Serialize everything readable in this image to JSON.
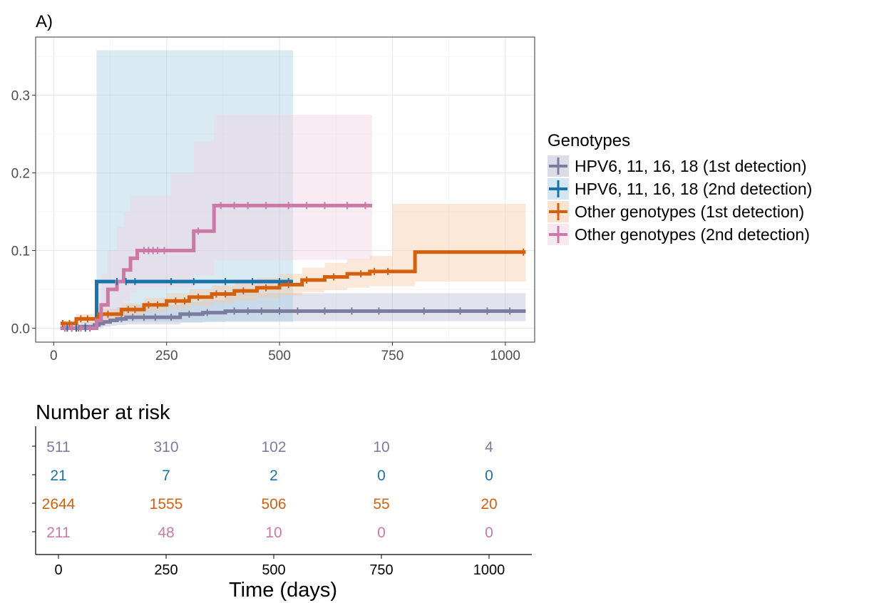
{
  "panel_label": "A)",
  "legend": {
    "title": "Genotypes"
  },
  "risk_table": {
    "title": "Number at risk",
    "xlabel": "Time (days)",
    "x_ticks": [
      0,
      250,
      500,
      750,
      1000
    ],
    "rows": [
      {
        "series": "HPV6, 11, 16, 18 (1st detection)",
        "values": [
          511,
          310,
          102,
          10,
          4
        ]
      },
      {
        "series": "HPV6, 11, 16, 18 (2nd detection)",
        "values": [
          21,
          7,
          2,
          0,
          0
        ]
      },
      {
        "series": "Other genotypes (1st detection)",
        "values": [
          2644,
          1555,
          506,
          55,
          20
        ]
      },
      {
        "series": "Other genotypes (2nd detection)",
        "values": [
          211,
          48,
          10,
          0,
          0
        ]
      }
    ]
  },
  "chart_data": {
    "type": "line",
    "title": "",
    "xlabel": "",
    "ylabel": "",
    "xlim": [
      -40,
      1065
    ],
    "ylim": [
      -0.018,
      0.375
    ],
    "x_ticks": [
      0,
      250,
      500,
      750,
      1000
    ],
    "y_ticks": [
      0.0,
      0.1,
      0.2,
      0.3
    ],
    "y_tick_labels": [
      "0.0",
      "0.1",
      "0.2",
      "0.3"
    ],
    "grid": true,
    "legend_position": "right",
    "series": [
      {
        "name": "HPV6, 11, 16, 18 (1st detection)",
        "color": "#7b7d9e",
        "band_color": "#b8b9d0",
        "x": [
          15,
          60,
          90,
          100,
          110,
          125,
          140,
          160,
          280,
          330,
          380,
          1045
        ],
        "y": [
          0.0,
          0.002,
          0.004,
          0.006,
          0.008,
          0.01,
          0.012,
          0.014,
          0.018,
          0.02,
          0.022,
          0.022
        ],
        "lower": [
          0.0,
          0.0,
          0.0,
          0.0,
          0.002,
          0.003,
          0.004,
          0.005,
          0.007,
          0.008,
          0.009,
          0.009
        ],
        "upper": [
          0.001,
          0.008,
          0.012,
          0.018,
          0.021,
          0.024,
          0.027,
          0.03,
          0.034,
          0.036,
          0.045,
          0.045
        ],
        "censor_x": [
          25,
          40,
          55,
          70,
          150,
          175,
          200,
          225,
          260,
          300,
          340,
          400,
          430,
          460,
          500,
          540,
          600,
          660,
          720,
          820,
          900,
          960,
          1010
        ]
      },
      {
        "name": "HPV6, 11, 16, 18 (2nd detection)",
        "color": "#1a72a8",
        "band_color": "#a8cee3",
        "x": [
          15,
          95,
          140,
          530
        ],
        "y": [
          0.0,
          0.06,
          0.06,
          0.06
        ],
        "lower": [
          0.0,
          0.008,
          0.008,
          0.008
        ],
        "upper": [
          0.001,
          0.358,
          0.358,
          0.358
        ],
        "censor_x": [
          30,
          50,
          70,
          140,
          160,
          180,
          260,
          310,
          380,
          440,
          500,
          520
        ]
      },
      {
        "name": "Other genotypes (1st detection)",
        "color": "#d4600f",
        "band_color": "#f5c7a3",
        "x": [
          15,
          50,
          100,
          150,
          200,
          250,
          300,
          350,
          400,
          450,
          500,
          550,
          600,
          650,
          700,
          750,
          800,
          1045
        ],
        "y": [
          0.006,
          0.012,
          0.018,
          0.024,
          0.03,
          0.035,
          0.04,
          0.044,
          0.048,
          0.052,
          0.056,
          0.062,
          0.066,
          0.07,
          0.073,
          0.073,
          0.098,
          0.098
        ],
        "lower": [
          0.002,
          0.006,
          0.011,
          0.016,
          0.021,
          0.025,
          0.029,
          0.033,
          0.036,
          0.039,
          0.042,
          0.046,
          0.049,
          0.052,
          0.054,
          0.054,
          0.06,
          0.06
        ],
        "upper": [
          0.01,
          0.018,
          0.025,
          0.032,
          0.039,
          0.045,
          0.05,
          0.055,
          0.06,
          0.065,
          0.07,
          0.078,
          0.084,
          0.089,
          0.093,
          0.16,
          0.16,
          0.16
        ],
        "censor_x": [
          20,
          35,
          60,
          75,
          120,
          165,
          180,
          210,
          230,
          270,
          290,
          320,
          360,
          380,
          420,
          470,
          520,
          560,
          620,
          680,
          710,
          740,
          1040
        ]
      },
      {
        "name": "Other genotypes (2nd detection)",
        "color": "#cc79a7",
        "band_color": "#f0cfe0",
        "x": [
          15,
          95,
          105,
          120,
          140,
          155,
          170,
          185,
          260,
          310,
          355,
          705
        ],
        "y": [
          0.0,
          0.01,
          0.03,
          0.05,
          0.06,
          0.075,
          0.09,
          0.1,
          0.1,
          0.125,
          0.158,
          0.158
        ],
        "lower": [
          0.0,
          0.002,
          0.01,
          0.02,
          0.027,
          0.035,
          0.045,
          0.052,
          0.052,
          0.068,
          0.088,
          0.088
        ],
        "upper": [
          0.001,
          0.03,
          0.07,
          0.1,
          0.13,
          0.15,
          0.17,
          0.17,
          0.2,
          0.24,
          0.275,
          0.275
        ],
        "censor_x": [
          25,
          40,
          60,
          80,
          200,
          210,
          220,
          230,
          245,
          320,
          370,
          400,
          430,
          470,
          520,
          560,
          600,
          650,
          690
        ]
      }
    ]
  }
}
